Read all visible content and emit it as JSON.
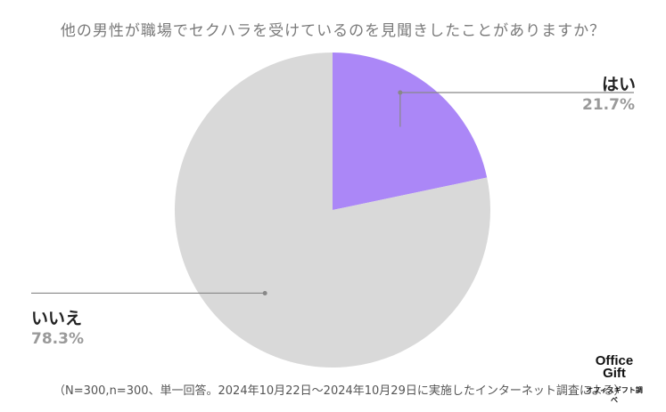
{
  "chart_data": {
    "type": "pie",
    "title": "他の男性が職場でセクハラを受けているのを見聞きしたことがありますか？",
    "slices": [
      {
        "label": "はい",
        "value": 21.7,
        "value_label": "21.7%",
        "color": "#ab87f7"
      },
      {
        "label": "いいえ",
        "value": 78.3,
        "value_label": "78.3%",
        "color": "#d9d9d9"
      }
    ]
  },
  "footnote": "（N=300,n=300、単一回答。2024年10月22日〜2024年10月29日に実施したインターネット調査による）",
  "brand": {
    "logo": "Office Gift",
    "sub": "オフィスギフト調べ"
  }
}
